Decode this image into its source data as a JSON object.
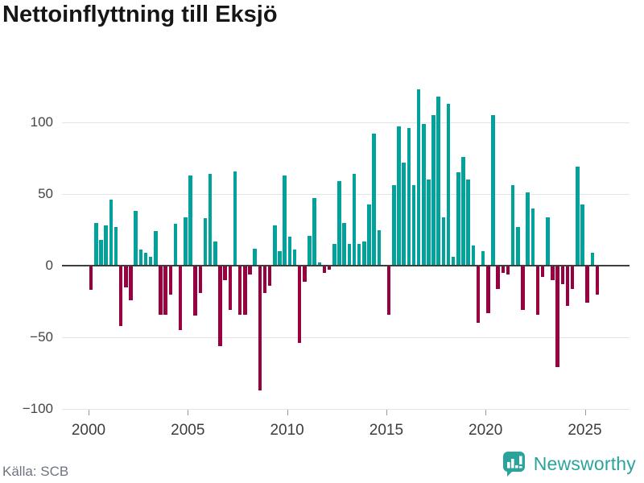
{
  "title": "Nettoinflyttning till Eksjö",
  "source": "Källa: SCB",
  "branding": {
    "logo_text": "Newsworthy",
    "logo_icon": "speech-bubble-bar-chart-icon",
    "color": "#2ba39d"
  },
  "colors": {
    "positive_bar": "#00a29b",
    "negative_bar": "#990040",
    "gridline": "#e4e4e4",
    "zero_line": "#3d3d3d",
    "axis_text": "#3d3d3d",
    "muted_text": "#6e7480"
  },
  "chart_data": {
    "type": "bar",
    "title": "Nettoinflyttning till Eksjö",
    "frequency": "quarterly",
    "start": "2000-Q1",
    "end": "2025-Q3",
    "grid": true,
    "legend": false,
    "ylim": [
      -100,
      130
    ],
    "y_ticks": [
      100,
      50,
      0,
      -50,
      -100
    ],
    "y_tick_labels": [
      "100",
      "50",
      "0",
      "−50",
      "−100"
    ],
    "x_tick_years": [
      2000,
      2005,
      2010,
      2015,
      2020,
      2025
    ],
    "x_tick_labels": [
      "2000",
      "2005",
      "2010",
      "2015",
      "2020",
      "2025"
    ],
    "values": [
      -17,
      30,
      18,
      28,
      46,
      27,
      -42,
      -15,
      -24,
      38,
      11,
      9,
      6,
      24,
      -34,
      -34,
      -20,
      29,
      -45,
      34,
      63,
      -35,
      -19,
      33,
      64,
      17,
      -56,
      -10,
      -31,
      66,
      -34,
      -34,
      -6,
      12,
      -87,
      -19,
      -14,
      28,
      10,
      63,
      20,
      11,
      -54,
      -11,
      21,
      47,
      2,
      -5,
      -3,
      15,
      59,
      30,
      15,
      64,
      15,
      17,
      43,
      92,
      25,
      0,
      -34,
      56,
      97,
      72,
      96,
      56,
      123,
      99,
      60,
      105,
      118,
      34,
      113,
      6,
      65,
      76,
      60,
      14,
      -40,
      10,
      -33,
      105,
      -16,
      -5,
      -6,
      56,
      27,
      -31,
      51,
      40,
      -34,
      -8,
      34,
      -10,
      -71,
      -13,
      -28,
      -16,
      69,
      43,
      -26,
      9,
      -20
    ]
  }
}
